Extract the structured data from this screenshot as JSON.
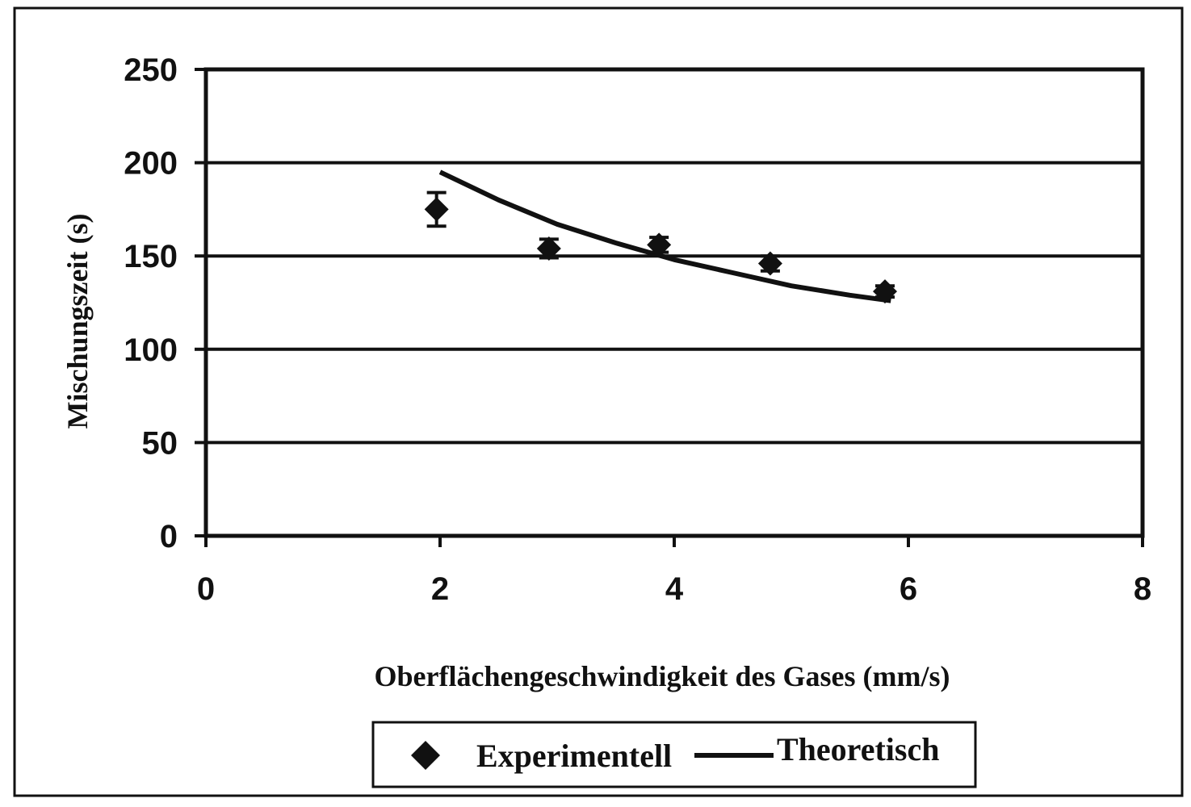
{
  "chart_data": {
    "type": "scatter",
    "xlabel": "Oberflächengeschwindigkeit des Gases (mm/s)",
    "ylabel": "Mischungszeit (s)",
    "xlim": [
      0,
      8
    ],
    "ylim": [
      0,
      250
    ],
    "x_ticks": [
      0,
      2,
      4,
      6,
      8
    ],
    "y_ticks": [
      0,
      50,
      100,
      150,
      200,
      250
    ],
    "grid": "horizontal",
    "legend_position": "bottom",
    "series": [
      {
        "name": "Experimentell",
        "kind": "scatter",
        "marker": "diamond",
        "x": [
          1.97,
          2.93,
          3.87,
          4.82,
          5.8
        ],
        "y": [
          175,
          154,
          156,
          146,
          131
        ],
        "error": [
          9,
          5,
          4,
          4,
          3
        ]
      },
      {
        "name": "Theoretisch",
        "kind": "line",
        "x": [
          2.0,
          2.5,
          3.0,
          3.5,
          4.0,
          4.5,
          5.0,
          5.5,
          5.85
        ],
        "y": [
          195,
          180,
          167,
          157,
          148,
          141,
          134,
          129,
          126
        ]
      }
    ]
  }
}
